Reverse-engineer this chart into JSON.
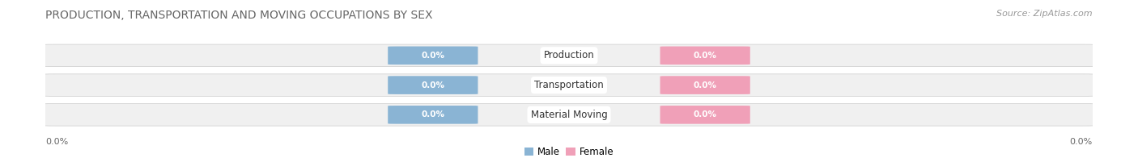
{
  "title": "PRODUCTION, TRANSPORTATION AND MOVING OCCUPATIONS BY SEX",
  "source": "Source: ZipAtlas.com",
  "categories": [
    "Production",
    "Transportation",
    "Material Moving"
  ],
  "male_values": [
    0.0,
    0.0,
    0.0
  ],
  "female_values": [
    0.0,
    0.0,
    0.0
  ],
  "male_color": "#8ab4d4",
  "female_color": "#f0a0b8",
  "bar_label_color": "#ffffff",
  "bar_bg_color": "#f0f0f0",
  "bar_border_color": "#cccccc",
  "bar_sep_color": "#e0e0e0",
  "axis_label_left": "0.0%",
  "axis_label_right": "0.0%",
  "male_legend": "Male",
  "female_legend": "Female",
  "title_fontsize": 10,
  "source_fontsize": 8,
  "label_fontsize": 7.5,
  "cat_fontsize": 8.5,
  "legend_fontsize": 8.5
}
